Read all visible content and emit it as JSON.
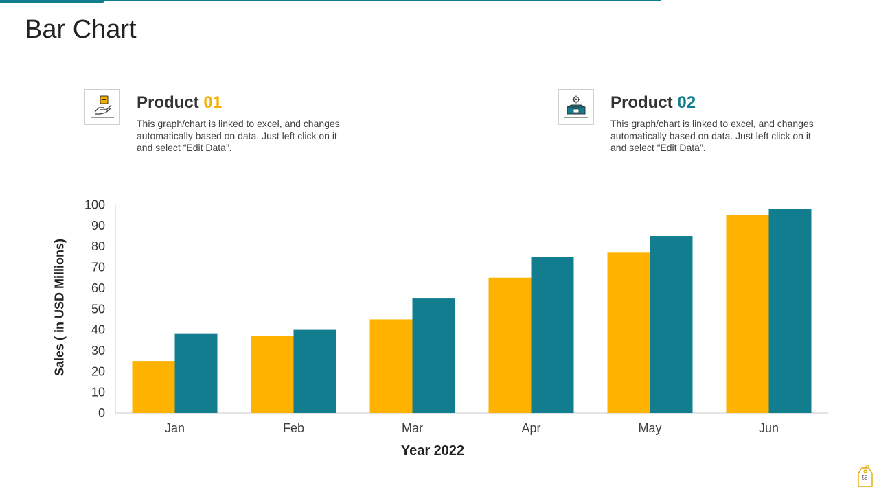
{
  "page": {
    "title": "Bar Chart",
    "slide_number": "56"
  },
  "products": [
    {
      "name": "Product",
      "number": "01",
      "number_color": "#f5b000",
      "icon": "hand-with-coin-icon",
      "description": "This graph/chart is linked to excel, and changes automatically based on data. Just left click on it and select “Edit Data”."
    },
    {
      "name": "Product",
      "number": "02",
      "number_color": "#127d8f",
      "icon": "box-with-gear-icon",
      "description": "This graph/chart is linked to excel, and changes automatically based on data. Just left click on it and select “Edit Data”."
    }
  ],
  "colors": {
    "accent_teal": "#127d8f",
    "accent_yellow": "#ffb300"
  },
  "chart_data": {
    "type": "bar",
    "title": "",
    "xlabel": "Year 2022",
    "ylabel": "Sales  ( in USD Millions)",
    "categories": [
      "Jan",
      "Feb",
      "Mar",
      "Apr",
      "May",
      "Jun"
    ],
    "series": [
      {
        "name": "Product 01",
        "color": "#ffb300",
        "values": [
          25,
          37,
          45,
          65,
          77,
          95
        ]
      },
      {
        "name": "Product 02",
        "color": "#127d8f",
        "values": [
          38,
          40,
          55,
          75,
          85,
          98
        ]
      }
    ],
    "ylim": [
      0,
      100
    ],
    "yticks": [
      0,
      10,
      20,
      30,
      40,
      50,
      60,
      70,
      80,
      90,
      100
    ],
    "grid": false,
    "legend": "none"
  }
}
